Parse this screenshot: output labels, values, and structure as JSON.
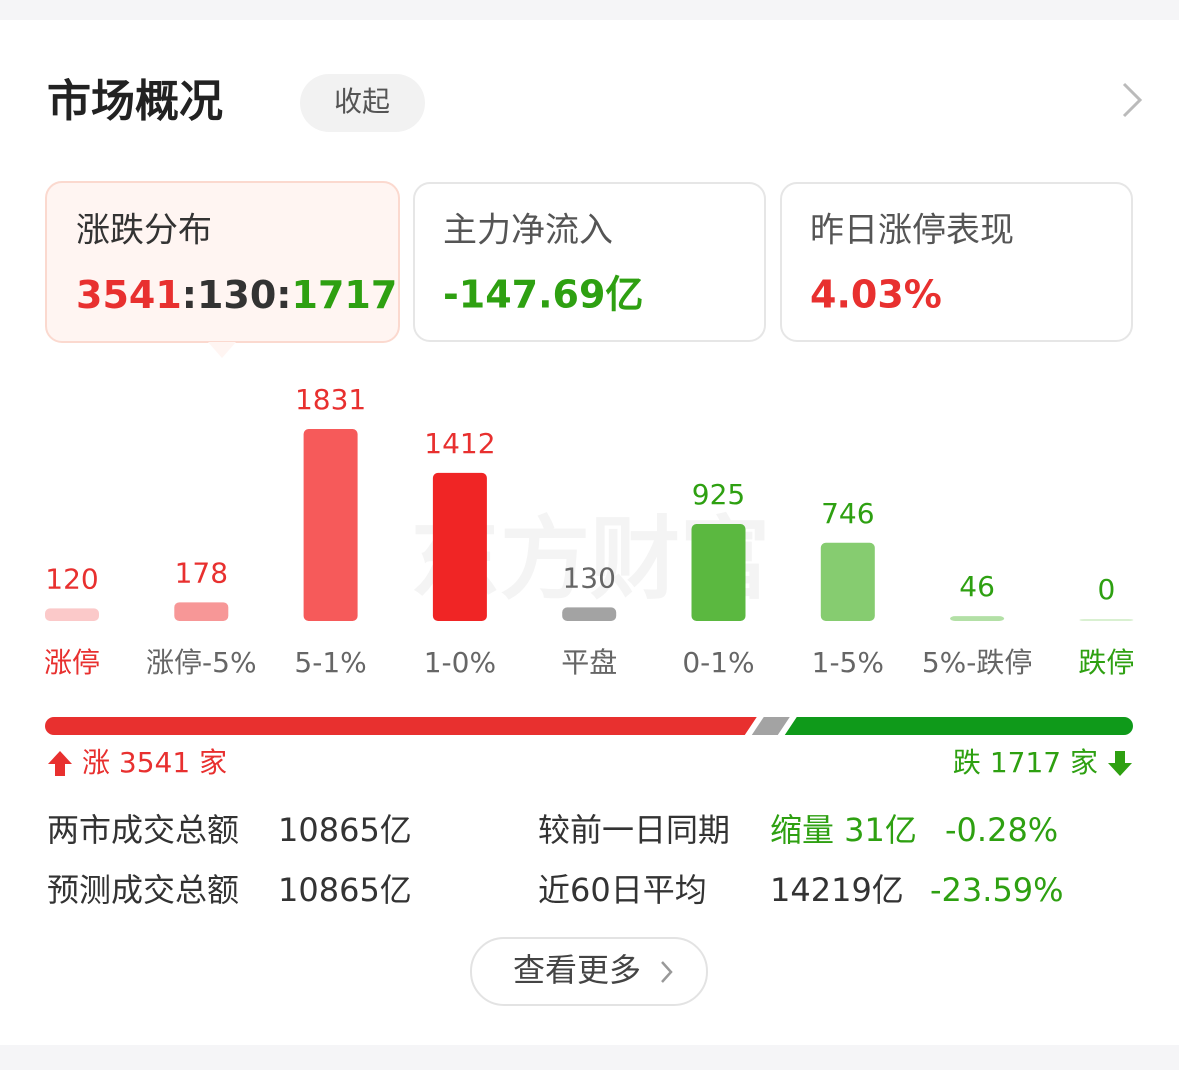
{
  "header": {
    "title": "市场概况",
    "collapse": "收起"
  },
  "cards": [
    {
      "title": "涨跌分布",
      "rise": 3541,
      "separator": ":",
      "flat": 130,
      "fall": 1717
    },
    {
      "title": "主力净流入",
      "value": "-147.69亿"
    },
    {
      "title": "昨日涨停表现",
      "value": "4.03%"
    }
  ],
  "watermark": "东方财富",
  "chart_data": {
    "type": "bar",
    "categories": [
      "涨停",
      "涨停-5%",
      "5-1%",
      "1-0%",
      "平盘",
      "0-1%",
      "1-5%",
      "5%-跌停",
      "跌停"
    ],
    "values": [
      120,
      178,
      1831,
      1412,
      130,
      925,
      746,
      46,
      0
    ],
    "colors": [
      "#fbc9c9",
      "#f79797",
      "#f65a5a",
      "#f02525",
      "#a3a3a3",
      "#5bb840",
      "#86cc70",
      "#b3e0a6",
      "#d9f0d1"
    ],
    "value_label_colors": [
      "#e8302f",
      "#e8302f",
      "#e8302f",
      "#e8302f",
      "#666666",
      "#2ea011",
      "#2ea011",
      "#2ea011",
      "#2ea011"
    ],
    "category_label_colors": [
      "#e8302f",
      "#666666",
      "#666666",
      "#666666",
      "#666666",
      "#666666",
      "#666666",
      "#666666",
      "#2ea011"
    ]
  },
  "ratio": {
    "rise_label": "涨",
    "fall_label": "跌",
    "unit": "家"
  },
  "stats": {
    "rows": [
      {
        "label": "两市成交总额",
        "value": "10865亿",
        "compare_label": "较前一日同期",
        "compare_value": "缩量 31亿",
        "compare_pct": "-0.28%"
      },
      {
        "label": "预测成交总额",
        "value": "10865亿",
        "compare_label": "近60日平均",
        "compare_value": "14219亿",
        "compare_pct": "-23.59%"
      }
    ]
  },
  "more": "查看更多"
}
